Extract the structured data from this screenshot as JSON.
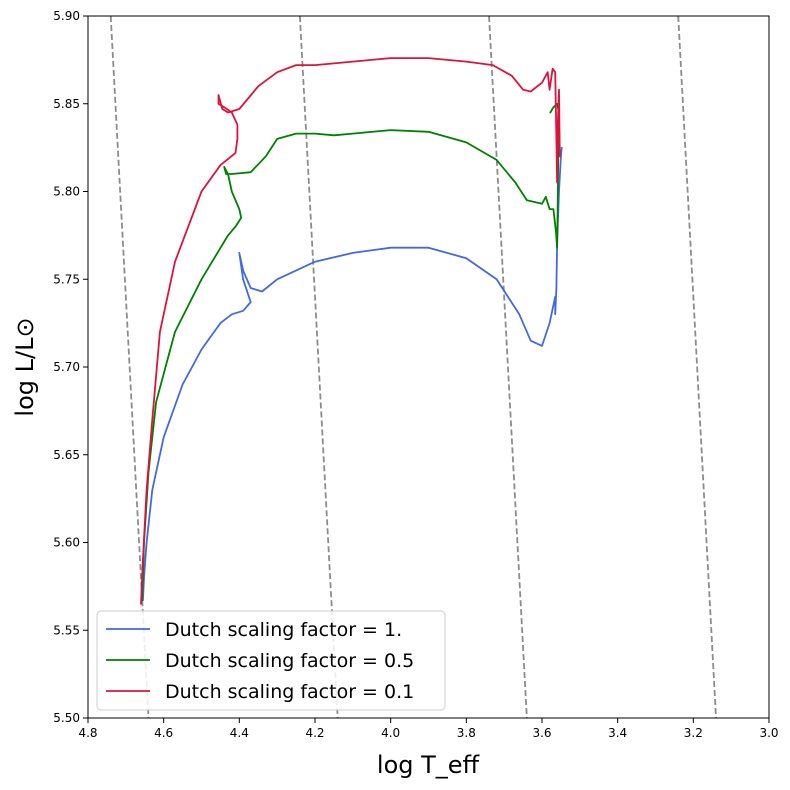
{
  "chart_data": {
    "type": "line",
    "title": "",
    "xlabel": "log T_eff",
    "ylabel": "log L/L⊙",
    "xlim": [
      4.8,
      3.0
    ],
    "ylim": [
      5.5,
      5.9
    ],
    "x_inverted": true,
    "grid": false,
    "legend_position": "lower-left",
    "xticks": [
      "4.8",
      "4.6",
      "4.4",
      "4.2",
      "4.0",
      "3.8",
      "3.6",
      "3.4",
      "3.2",
      "3.0"
    ],
    "yticks": [
      "5.50",
      "5.55",
      "5.60",
      "5.65",
      "5.70",
      "5.75",
      "5.80",
      "5.85",
      "5.90"
    ],
    "reference_lines": [
      {
        "style": "dashed",
        "color": "#8c8c8c",
        "points": [
          [
            4.74,
            5.9
          ],
          [
            4.64,
            5.5
          ]
        ]
      },
      {
        "style": "dashed",
        "color": "#8c8c8c",
        "points": [
          [
            4.24,
            5.9
          ],
          [
            4.14,
            5.5
          ]
        ]
      },
      {
        "style": "dashed",
        "color": "#8c8c8c",
        "points": [
          [
            3.74,
            5.9
          ],
          [
            3.64,
            5.5
          ]
        ]
      },
      {
        "style": "dashed",
        "color": "#8c8c8c",
        "points": [
          [
            3.24,
            5.9
          ],
          [
            3.14,
            5.5
          ]
        ]
      }
    ],
    "series": [
      {
        "name": "Dutch scaling factor = 1.",
        "color": "#4169e1",
        "points": [
          [
            4.655,
            5.567
          ],
          [
            4.652,
            5.58
          ],
          [
            4.645,
            5.6
          ],
          [
            4.63,
            5.63
          ],
          [
            4.6,
            5.66
          ],
          [
            4.55,
            5.69
          ],
          [
            4.5,
            5.71
          ],
          [
            4.45,
            5.725
          ],
          [
            4.42,
            5.73
          ],
          [
            4.39,
            5.732
          ],
          [
            4.37,
            5.737
          ],
          [
            4.39,
            5.75
          ],
          [
            4.4,
            5.765
          ],
          [
            4.39,
            5.755
          ],
          [
            4.37,
            5.745
          ],
          [
            4.34,
            5.743
          ],
          [
            4.3,
            5.75
          ],
          [
            4.2,
            5.76
          ],
          [
            4.1,
            5.765
          ],
          [
            4.0,
            5.768
          ],
          [
            3.9,
            5.768
          ],
          [
            3.8,
            5.762
          ],
          [
            3.72,
            5.75
          ],
          [
            3.66,
            5.73
          ],
          [
            3.63,
            5.715
          ],
          [
            3.6,
            5.712
          ],
          [
            3.58,
            5.725
          ],
          [
            3.565,
            5.74
          ],
          [
            3.565,
            5.73
          ],
          [
            3.562,
            5.745
          ],
          [
            3.56,
            5.77
          ],
          [
            3.555,
            5.8
          ],
          [
            3.55,
            5.82
          ],
          [
            3.548,
            5.825
          ]
        ]
      },
      {
        "name": "Dutch scaling factor = 0.5",
        "color": "#008000",
        "points": [
          [
            4.657,
            5.567
          ],
          [
            4.652,
            5.6
          ],
          [
            4.64,
            5.64
          ],
          [
            4.62,
            5.68
          ],
          [
            4.57,
            5.72
          ],
          [
            4.5,
            5.75
          ],
          [
            4.43,
            5.775
          ],
          [
            4.41,
            5.78
          ],
          [
            4.395,
            5.785
          ],
          [
            4.4,
            5.79
          ],
          [
            4.42,
            5.8
          ],
          [
            4.43,
            5.81
          ],
          [
            4.44,
            5.814
          ],
          [
            4.435,
            5.81
          ],
          [
            4.42,
            5.81
          ],
          [
            4.37,
            5.811
          ],
          [
            4.33,
            5.82
          ],
          [
            4.3,
            5.83
          ],
          [
            4.25,
            5.833
          ],
          [
            4.2,
            5.833
          ],
          [
            4.15,
            5.832
          ],
          [
            4.1,
            5.833
          ],
          [
            4.0,
            5.835
          ],
          [
            3.9,
            5.834
          ],
          [
            3.8,
            5.828
          ],
          [
            3.72,
            5.818
          ],
          [
            3.67,
            5.805
          ],
          [
            3.64,
            5.795
          ],
          [
            3.62,
            5.794
          ],
          [
            3.6,
            5.793
          ],
          [
            3.59,
            5.797
          ],
          [
            3.58,
            5.79
          ],
          [
            3.57,
            5.79
          ],
          [
            3.563,
            5.777
          ],
          [
            3.56,
            5.768
          ],
          [
            3.558,
            5.8
          ],
          [
            3.557,
            5.83
          ],
          [
            3.555,
            5.845
          ],
          [
            3.56,
            5.85
          ],
          [
            3.57,
            5.848
          ],
          [
            3.578,
            5.845
          ]
        ]
      },
      {
        "name": "Dutch scaling factor = 0.1",
        "color": "#dc143c",
        "points": [
          [
            4.66,
            5.565
          ],
          [
            4.655,
            5.59
          ],
          [
            4.645,
            5.63
          ],
          [
            4.63,
            5.67
          ],
          [
            4.61,
            5.72
          ],
          [
            4.57,
            5.76
          ],
          [
            4.5,
            5.8
          ],
          [
            4.45,
            5.815
          ],
          [
            4.41,
            5.822
          ],
          [
            4.405,
            5.83
          ],
          [
            4.405,
            5.838
          ],
          [
            4.42,
            5.845
          ],
          [
            4.44,
            5.848
          ],
          [
            4.455,
            5.85
          ],
          [
            4.455,
            5.855
          ],
          [
            4.445,
            5.847
          ],
          [
            4.43,
            5.845
          ],
          [
            4.4,
            5.847
          ],
          [
            4.35,
            5.86
          ],
          [
            4.3,
            5.868
          ],
          [
            4.25,
            5.872
          ],
          [
            4.2,
            5.872
          ],
          [
            4.1,
            5.874
          ],
          [
            4.0,
            5.876
          ],
          [
            3.9,
            5.876
          ],
          [
            3.8,
            5.874
          ],
          [
            3.73,
            5.872
          ],
          [
            3.68,
            5.866
          ],
          [
            3.65,
            5.858
          ],
          [
            3.63,
            5.857
          ],
          [
            3.6,
            5.862
          ],
          [
            3.585,
            5.868
          ],
          [
            3.58,
            5.858
          ],
          [
            3.572,
            5.87
          ],
          [
            3.565,
            5.868
          ],
          [
            3.562,
            5.83
          ],
          [
            3.56,
            5.805
          ],
          [
            3.558,
            5.84
          ],
          [
            3.555,
            5.858
          ],
          [
            3.553,
            5.82
          ]
        ]
      }
    ]
  }
}
